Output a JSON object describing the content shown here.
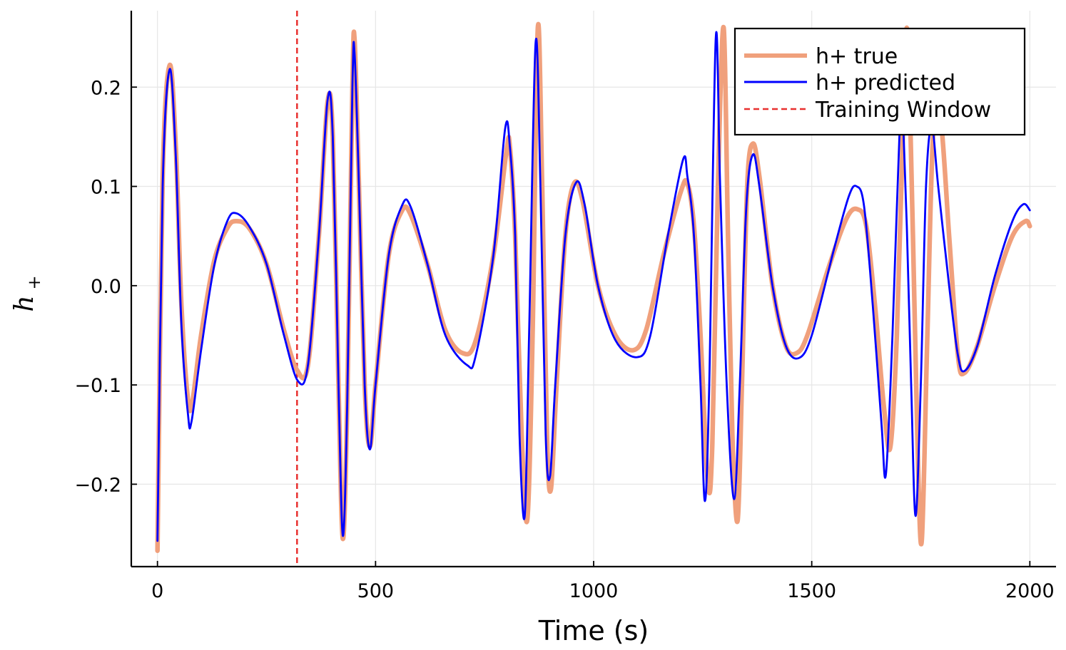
{
  "chart_data": {
    "type": "line",
    "title": "",
    "xlabel": "Time (s)",
    "ylabel": "h",
    "ylabel_subscript": "+",
    "xlim": [
      -60,
      2060
    ],
    "ylim": [
      -0.283,
      0.277
    ],
    "xticks": [
      0,
      500,
      1000,
      1500,
      2000
    ],
    "xtick_labels": [
      "0",
      "500",
      "1000",
      "1500",
      "2000"
    ],
    "yticks": [
      -0.2,
      -0.1,
      0.0,
      0.1,
      0.2
    ],
    "ytick_labels": [
      "−0.2",
      "−0.1",
      "0.0",
      "0.1",
      "0.2"
    ],
    "grid": true,
    "legend_position": "top-right",
    "vline": {
      "x": 320,
      "name": "Training Window",
      "color": "#e8302f",
      "style": "dashed"
    },
    "series": [
      {
        "name": "h+ true",
        "color": "#f0a07c",
        "points": [
          [
            0,
            -0.267
          ],
          [
            12,
            0.11
          ],
          [
            28,
            0.222
          ],
          [
            42,
            0.14
          ],
          [
            55,
            -0.02
          ],
          [
            70,
            -0.115
          ],
          [
            80,
            -0.117
          ],
          [
            100,
            -0.05
          ],
          [
            130,
            0.025
          ],
          [
            160,
            0.058
          ],
          [
            180,
            0.065
          ],
          [
            210,
            0.058
          ],
          [
            250,
            0.022
          ],
          [
            290,
            -0.045
          ],
          [
            320,
            -0.085
          ],
          [
            345,
            -0.08
          ],
          [
            370,
            0.05
          ],
          [
            390,
            0.185
          ],
          [
            402,
            0.15
          ],
          [
            415,
            -0.1
          ],
          [
            425,
            -0.255
          ],
          [
            435,
            -0.12
          ],
          [
            447,
            0.2
          ],
          [
            452,
            0.247
          ],
          [
            462,
            0.1
          ],
          [
            475,
            -0.1
          ],
          [
            487,
            -0.162
          ],
          [
            500,
            -0.1
          ],
          [
            530,
            0.03
          ],
          [
            560,
            0.075
          ],
          [
            580,
            0.072
          ],
          [
            620,
            0.02
          ],
          [
            660,
            -0.045
          ],
          [
            700,
            -0.068
          ],
          [
            730,
            -0.055
          ],
          [
            770,
            0.03
          ],
          [
            800,
            0.135
          ],
          [
            808,
            0.14
          ],
          [
            820,
            0.05
          ],
          [
            835,
            -0.15
          ],
          [
            848,
            -0.235
          ],
          [
            860,
            -0.05
          ],
          [
            872,
            0.26
          ],
          [
            882,
            0.1
          ],
          [
            893,
            -0.15
          ],
          [
            902,
            -0.205
          ],
          [
            915,
            -0.1
          ],
          [
            935,
            0.05
          ],
          [
            955,
            0.103
          ],
          [
            975,
            0.085
          ],
          [
            1010,
            0.0
          ],
          [
            1050,
            -0.05
          ],
          [
            1090,
            -0.065
          ],
          [
            1120,
            -0.045
          ],
          [
            1160,
            0.03
          ],
          [
            1200,
            0.095
          ],
          [
            1215,
            0.103
          ],
          [
            1230,
            0.06
          ],
          [
            1245,
            -0.05
          ],
          [
            1262,
            -0.2
          ],
          [
            1272,
            -0.16
          ],
          [
            1285,
            0.1
          ],
          [
            1298,
            0.26
          ],
          [
            1308,
            0.05
          ],
          [
            1318,
            -0.15
          ],
          [
            1330,
            -0.237
          ],
          [
            1340,
            -0.1
          ],
          [
            1352,
            0.1
          ],
          [
            1365,
            0.143
          ],
          [
            1380,
            0.11
          ],
          [
            1410,
            0.0
          ],
          [
            1440,
            -0.06
          ],
          [
            1465,
            -0.068
          ],
          [
            1490,
            -0.05
          ],
          [
            1540,
            0.02
          ],
          [
            1580,
            0.068
          ],
          [
            1605,
            0.077
          ],
          [
            1625,
            0.06
          ],
          [
            1645,
            -0.02
          ],
          [
            1665,
            -0.12
          ],
          [
            1680,
            -0.163
          ],
          [
            1695,
            -0.05
          ],
          [
            1712,
            0.2
          ],
          [
            1720,
            0.25
          ],
          [
            1732,
            0.05
          ],
          [
            1742,
            -0.15
          ],
          [
            1752,
            -0.258
          ],
          [
            1765,
            -0.05
          ],
          [
            1778,
            0.15
          ],
          [
            1795,
            0.17
          ],
          [
            1815,
            0.05
          ],
          [
            1835,
            -0.07
          ],
          [
            1850,
            -0.088
          ],
          [
            1880,
            -0.06
          ],
          [
            1920,
            0.0
          ],
          [
            1960,
            0.05
          ],
          [
            1990,
            0.065
          ],
          [
            2000,
            0.06
          ]
        ]
      },
      {
        "name": "h+ predicted",
        "color": "#0000ff",
        "points": [
          [
            0,
            -0.257
          ],
          [
            12,
            0.1
          ],
          [
            28,
            0.218
          ],
          [
            42,
            0.13
          ],
          [
            55,
            -0.04
          ],
          [
            70,
            -0.13
          ],
          [
            78,
            -0.137
          ],
          [
            100,
            -0.065
          ],
          [
            130,
            0.02
          ],
          [
            160,
            0.065
          ],
          [
            180,
            0.073
          ],
          [
            210,
            0.06
          ],
          [
            250,
            0.022
          ],
          [
            290,
            -0.05
          ],
          [
            322,
            -0.096
          ],
          [
            345,
            -0.08
          ],
          [
            370,
            0.05
          ],
          [
            390,
            0.187
          ],
          [
            402,
            0.15
          ],
          [
            415,
            -0.1
          ],
          [
            425,
            -0.252
          ],
          [
            435,
            -0.12
          ],
          [
            447,
            0.2
          ],
          [
            452,
            0.233
          ],
          [
            462,
            0.1
          ],
          [
            475,
            -0.1
          ],
          [
            487,
            -0.165
          ],
          [
            500,
            -0.1
          ],
          [
            530,
            0.03
          ],
          [
            560,
            0.08
          ],
          [
            580,
            0.08
          ],
          [
            620,
            0.02
          ],
          [
            660,
            -0.05
          ],
          [
            710,
            -0.08
          ],
          [
            730,
            -0.07
          ],
          [
            770,
            0.03
          ],
          [
            797,
            0.158
          ],
          [
            808,
            0.14
          ],
          [
            820,
            0.05
          ],
          [
            830,
            -0.15
          ],
          [
            842,
            -0.232
          ],
          [
            852,
            -0.05
          ],
          [
            867,
            0.245
          ],
          [
            878,
            0.1
          ],
          [
            890,
            -0.15
          ],
          [
            900,
            -0.192
          ],
          [
            912,
            -0.1
          ],
          [
            935,
            0.05
          ],
          [
            960,
            0.104
          ],
          [
            980,
            0.08
          ],
          [
            1010,
            0.0
          ],
          [
            1050,
            -0.055
          ],
          [
            1100,
            -0.072
          ],
          [
            1130,
            -0.05
          ],
          [
            1170,
            0.05
          ],
          [
            1205,
            0.127
          ],
          [
            1215,
            0.11
          ],
          [
            1230,
            0.05
          ],
          [
            1245,
            -0.1
          ],
          [
            1255,
            -0.217
          ],
          [
            1265,
            -0.1
          ],
          [
            1280,
            0.25
          ],
          [
            1290,
            0.1
          ],
          [
            1305,
            -0.1
          ],
          [
            1322,
            -0.215
          ],
          [
            1335,
            -0.1
          ],
          [
            1350,
            0.08
          ],
          [
            1365,
            0.132
          ],
          [
            1380,
            0.1
          ],
          [
            1410,
            0.0
          ],
          [
            1440,
            -0.06
          ],
          [
            1470,
            -0.073
          ],
          [
            1500,
            -0.05
          ],
          [
            1550,
            0.035
          ],
          [
            1585,
            0.09
          ],
          [
            1603,
            0.1
          ],
          [
            1620,
            0.08
          ],
          [
            1640,
            -0.02
          ],
          [
            1660,
            -0.14
          ],
          [
            1670,
            -0.19
          ],
          [
            1685,
            -0.05
          ],
          [
            1705,
            0.2
          ],
          [
            1710,
            0.16
          ],
          [
            1718,
            0.06
          ],
          [
            1728,
            -0.1
          ],
          [
            1738,
            -0.232
          ],
          [
            1750,
            -0.1
          ],
          [
            1762,
            0.1
          ],
          [
            1775,
            0.16
          ],
          [
            1790,
            0.1
          ],
          [
            1815,
            0.0
          ],
          [
            1835,
            -0.07
          ],
          [
            1850,
            -0.086
          ],
          [
            1880,
            -0.06
          ],
          [
            1920,
            0.01
          ],
          [
            1960,
            0.065
          ],
          [
            1985,
            0.082
          ],
          [
            2000,
            0.076
          ]
        ]
      }
    ]
  }
}
